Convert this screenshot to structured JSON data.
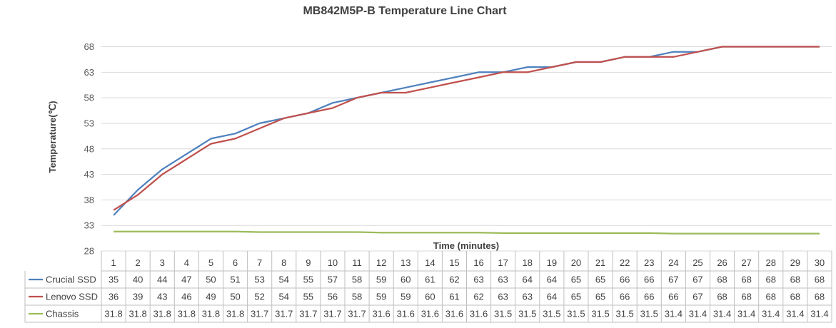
{
  "chart_data": {
    "type": "line",
    "title": "MB842M5P-B Temperature Line Chart",
    "xlabel": "Time (minutes)",
    "ylabel": "Temperature(℃)",
    "ylim": [
      28,
      68
    ],
    "yticks": [
      28,
      33,
      38,
      43,
      48,
      53,
      58,
      63,
      68
    ],
    "grid": true,
    "legend": "data table",
    "categories": [
      "1",
      "2",
      "3",
      "4",
      "5",
      "6",
      "7",
      "8",
      "9",
      "10",
      "11",
      "12",
      "13",
      "14",
      "15",
      "16",
      "17",
      "18",
      "19",
      "20",
      "21",
      "22",
      "23",
      "24",
      "25",
      "26",
      "27",
      "28",
      "29",
      "30"
    ],
    "series": [
      {
        "name": "Crucial SSD",
        "color": "#4F81BD",
        "values": [
          35,
          40,
          44,
          47,
          50,
          51,
          53,
          54,
          55,
          57,
          58,
          59,
          60,
          61,
          62,
          63,
          63,
          64,
          64,
          65,
          65,
          66,
          66,
          67,
          67,
          68,
          68,
          68,
          68,
          68
        ],
        "labels": [
          "35",
          "40",
          "44",
          "47",
          "50",
          "51",
          "53",
          "54",
          "55",
          "57",
          "58",
          "59",
          "60",
          "61",
          "62",
          "63",
          "63",
          "64",
          "64",
          "65",
          "65",
          "66",
          "66",
          "67",
          "67",
          "68",
          "68",
          "68",
          "68",
          "68"
        ]
      },
      {
        "name": "Lenovo SSD",
        "color": "#C0504D",
        "values": [
          36,
          39,
          43,
          46,
          49,
          50,
          52,
          54,
          55,
          56,
          58,
          59,
          59,
          60,
          61,
          62,
          63,
          63,
          64,
          65,
          65,
          66,
          66,
          66,
          67,
          68,
          68,
          68,
          68,
          68
        ],
        "labels": [
          "36",
          "39",
          "43",
          "46",
          "49",
          "50",
          "52",
          "54",
          "55",
          "56",
          "58",
          "59",
          "59",
          "60",
          "61",
          "62",
          "63",
          "63",
          "64",
          "65",
          "65",
          "66",
          "66",
          "66",
          "67",
          "68",
          "68",
          "68",
          "68",
          "68"
        ]
      },
      {
        "name": "Chassis",
        "color": "#9BBB59",
        "values": [
          31.8,
          31.8,
          31.8,
          31.8,
          31.8,
          31.8,
          31.7,
          31.7,
          31.7,
          31.7,
          31.7,
          31.6,
          31.6,
          31.6,
          31.6,
          31.6,
          31.5,
          31.5,
          31.5,
          31.5,
          31.5,
          31.5,
          31.5,
          31.4,
          31.4,
          31.4,
          31.4,
          31.4,
          31.4,
          31.4
        ],
        "labels": [
          "31.8",
          "31.8",
          "31.8",
          "31.8",
          "31.8",
          "31.8",
          "31.7",
          "31.7",
          "31.7",
          "31.7",
          "31.7",
          "31.6",
          "31.6",
          "31.6",
          "31.6",
          "31.6",
          "31.5",
          "31.5",
          "31.5",
          "31.5",
          "31.5",
          "31.5",
          "31.5",
          "31.4",
          "31.4",
          "31.4",
          "31.4",
          "31.4",
          "31.4",
          "31.4"
        ]
      }
    ]
  }
}
